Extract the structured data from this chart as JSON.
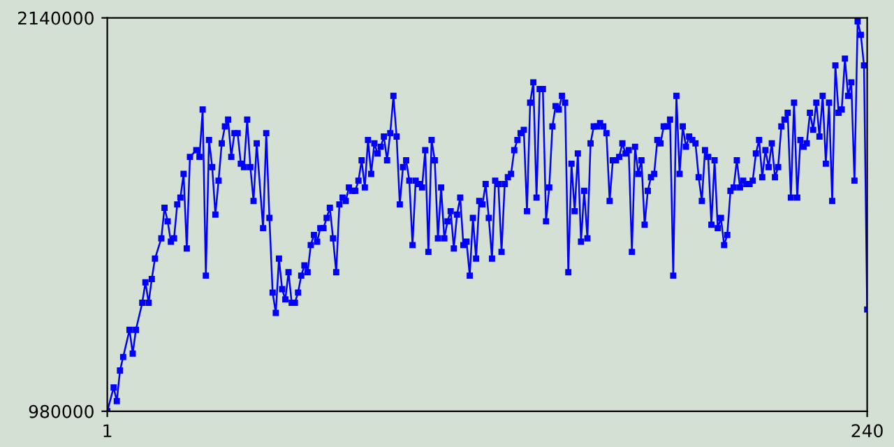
{
  "chart_data": {
    "type": "line",
    "marker": "square",
    "line_style": "solid",
    "grid": false,
    "legend": false,
    "xlim": [
      1,
      240
    ],
    "xticks": [
      1,
      240
    ],
    "ylim": [
      980000,
      2140000
    ],
    "yticks": [
      980000,
      2140000
    ],
    "series": [
      {
        "color": "#0000ff",
        "x": [
          1,
          3,
          4,
          5,
          6,
          8,
          9,
          10,
          12,
          13,
          14,
          15,
          16,
          18,
          19,
          20,
          21,
          22,
          23,
          24,
          25,
          26,
          27,
          29,
          30,
          31,
          32,
          33,
          34,
          35,
          36,
          37,
          38,
          39,
          40,
          41,
          42,
          43,
          44,
          45,
          46,
          47,
          48,
          50,
          51,
          52,
          53,
          54,
          55,
          56,
          57,
          58,
          59,
          60,
          61,
          62,
          63,
          64,
          65,
          66,
          67,
          68,
          69,
          70,
          71,
          72,
          73,
          74,
          75,
          76,
          77,
          78,
          79,
          80,
          81,
          82,
          83,
          84,
          85,
          86,
          87,
          88,
          89,
          90,
          91,
          92,
          93,
          94,
          95,
          96,
          97,
          98,
          99,
          100,
          101,
          102,
          103,
          104,
          105,
          106,
          107,
          108,
          109,
          110,
          111,
          112,
          113,
          114,
          115,
          116,
          117,
          118,
          119,
          120,
          121,
          122,
          123,
          124,
          125,
          126,
          127,
          128,
          129,
          130,
          131,
          132,
          133,
          134,
          135,
          136,
          137,
          138,
          139,
          140,
          141,
          142,
          143,
          144,
          145,
          146,
          147,
          148,
          149,
          150,
          151,
          152,
          153,
          154,
          155,
          156,
          157,
          158,
          159,
          160,
          161,
          162,
          163,
          164,
          165,
          166,
          167,
          168,
          169,
          170,
          171,
          172,
          173,
          174,
          175,
          176,
          177,
          178,
          179,
          180,
          181,
          182,
          183,
          184,
          185,
          186,
          187,
          188,
          189,
          190,
          191,
          192,
          193,
          194,
          195,
          196,
          197,
          198,
          199,
          200,
          201,
          202,
          203,
          204,
          205,
          206,
          207,
          208,
          209,
          210,
          211,
          212,
          213,
          214,
          215,
          216,
          217,
          218,
          219,
          220,
          221,
          222,
          223,
          224,
          225,
          226,
          227,
          228,
          229,
          230,
          231,
          232,
          233,
          234,
          235,
          236,
          237,
          238,
          239,
          240
        ],
        "values": [
          980000,
          1050000,
          1010000,
          1100000,
          1140000,
          1220000,
          1150000,
          1220000,
          1300000,
          1360000,
          1300000,
          1370000,
          1430000,
          1490000,
          1580000,
          1540000,
          1480000,
          1490000,
          1590000,
          1610000,
          1680000,
          1460000,
          1730000,
          1750000,
          1730000,
          1870000,
          1380000,
          1780000,
          1700000,
          1560000,
          1660000,
          1770000,
          1820000,
          1840000,
          1730000,
          1800000,
          1800000,
          1710000,
          1700000,
          1840000,
          1700000,
          1600000,
          1770000,
          1520000,
          1800000,
          1550000,
          1330000,
          1270000,
          1430000,
          1340000,
          1310000,
          1390000,
          1300000,
          1300000,
          1330000,
          1380000,
          1410000,
          1390000,
          1470000,
          1500000,
          1480000,
          1520000,
          1520000,
          1550000,
          1580000,
          1490000,
          1390000,
          1590000,
          1610000,
          1600000,
          1640000,
          1630000,
          1630000,
          1660000,
          1720000,
          1640000,
          1780000,
          1680000,
          1770000,
          1740000,
          1760000,
          1790000,
          1720000,
          1800000,
          1910000,
          1790000,
          1590000,
          1700000,
          1720000,
          1660000,
          1470000,
          1660000,
          1650000,
          1640000,
          1750000,
          1450000,
          1780000,
          1720000,
          1490000,
          1640000,
          1490000,
          1540000,
          1570000,
          1460000,
          1560000,
          1610000,
          1470000,
          1480000,
          1380000,
          1550000,
          1430000,
          1600000,
          1590000,
          1650000,
          1550000,
          1430000,
          1660000,
          1650000,
          1450000,
          1650000,
          1670000,
          1680000,
          1750000,
          1780000,
          1800000,
          1810000,
          1570000,
          1890000,
          1950000,
          1610000,
          1930000,
          1930000,
          1540000,
          1640000,
          1820000,
          1880000,
          1870000,
          1910000,
          1890000,
          1390000,
          1710000,
          1570000,
          1740000,
          1480000,
          1630000,
          1490000,
          1770000,
          1820000,
          1820000,
          1830000,
          1820000,
          1800000,
          1600000,
          1720000,
          1720000,
          1730000,
          1770000,
          1740000,
          1750000,
          1450000,
          1760000,
          1680000,
          1720000,
          1530000,
          1630000,
          1670000,
          1680000,
          1780000,
          1770000,
          1820000,
          1820000,
          1840000,
          1380000,
          1910000,
          1680000,
          1820000,
          1760000,
          1790000,
          1780000,
          1770000,
          1670000,
          1600000,
          1750000,
          1730000,
          1530000,
          1720000,
          1520000,
          1550000,
          1470000,
          1500000,
          1630000,
          1640000,
          1720000,
          1640000,
          1660000,
          1650000,
          1650000,
          1660000,
          1740000,
          1780000,
          1670000,
          1750000,
          1700000,
          1770000,
          1670000,
          1700000,
          1820000,
          1840000,
          1860000,
          1610000,
          1890000,
          1610000,
          1780000,
          1760000,
          1770000,
          1860000,
          1810000,
          1890000,
          1790000,
          1910000,
          1710000,
          1890000,
          1600000,
          2000000,
          1860000,
          1870000,
          2020000,
          1910000,
          1950000,
          1660000,
          2130000,
          2090000,
          2000000,
          1280000
        ]
      }
    ]
  }
}
